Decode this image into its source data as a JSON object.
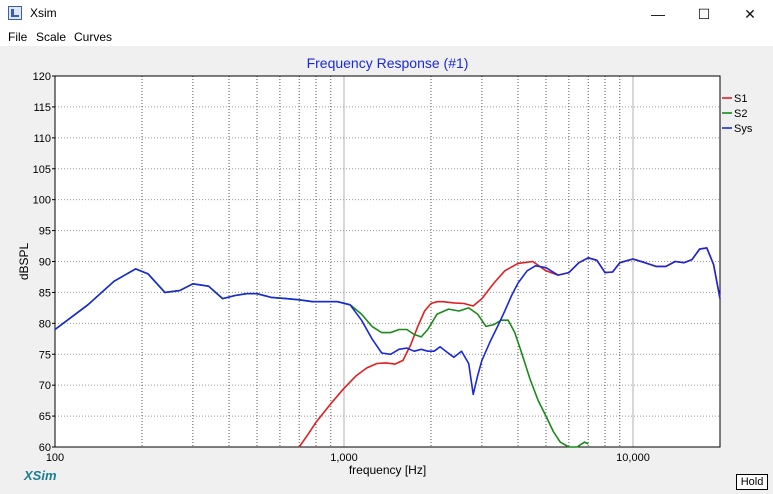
{
  "window": {
    "title": "Xsim",
    "controls": [
      "—",
      "☐",
      "✕"
    ]
  },
  "menu": {
    "items": [
      "File",
      "Scale",
      "Curves"
    ]
  },
  "brand": "XSim",
  "hold_label": "Hold",
  "chart_data": {
    "type": "line",
    "title": "Frequency Response (#1)",
    "xlabel": "frequency [Hz]",
    "ylabel": "dBSPL",
    "x_scale": "log",
    "xlim": [
      100,
      20000
    ],
    "ylim": [
      60,
      120
    ],
    "x_tick_labels": [
      {
        "value": 100,
        "label": "100"
      },
      {
        "value": 1000,
        "label": "1,000"
      },
      {
        "value": 10000,
        "label": "10,000"
      }
    ],
    "y_ticks": [
      120,
      115,
      110,
      105,
      100,
      95,
      90,
      85,
      80,
      75,
      70,
      65,
      60
    ],
    "grid": true,
    "legend_position": "top-right",
    "series": [
      {
        "name": "S1",
        "color": "#e02020",
        "x": [
          700,
          750,
          800,
          900,
          1000,
          1100,
          1200,
          1300,
          1400,
          1500,
          1600,
          1700,
          1800,
          1900,
          2000,
          2100,
          2200,
          2400,
          2600,
          2800,
          3000,
          3300,
          3600,
          4000,
          4500,
          5000,
          5500,
          6000,
          6500,
          7000,
          7500,
          8000,
          8500,
          9000,
          10000,
          11000,
          12000,
          13000,
          14000,
          15000,
          16000,
          17000,
          18000,
          19000,
          20000
        ],
        "y": [
          60,
          62,
          64,
          67,
          69.5,
          71.5,
          72.8,
          73.5,
          73.6,
          73.4,
          74,
          76.5,
          79.5,
          82,
          83.2,
          83.5,
          83.5,
          83.3,
          83.2,
          82.8,
          84,
          86.5,
          88.5,
          89.7,
          90,
          88.5,
          87.8,
          88.2,
          89.8,
          90.6,
          90.2,
          88.2,
          88.3,
          89.8,
          90.4,
          89.8,
          89.2,
          89.2,
          90,
          89.8,
          90.3,
          92,
          92.2,
          89.5,
          84
        ]
      },
      {
        "name": "S2",
        "color": "#1a8a1a",
        "x": [
          100,
          130,
          160,
          190,
          210,
          240,
          270,
          300,
          340,
          380,
          420,
          460,
          500,
          560,
          630,
          700,
          780,
          860,
          950,
          1050,
          1150,
          1250,
          1350,
          1450,
          1550,
          1650,
          1750,
          1850,
          1950,
          2100,
          2300,
          2500,
          2700,
          2900,
          3100,
          3300,
          3500,
          3700,
          3900,
          4100,
          4400,
          4700,
          5000,
          5300,
          5600,
          6000,
          6400,
          6800,
          7000
        ],
        "y": [
          79,
          83,
          86.8,
          88.8,
          88,
          85,
          85.3,
          86.4,
          86,
          84,
          84.5,
          84.8,
          84.8,
          84.2,
          84,
          83.8,
          83.5,
          83.5,
          83.5,
          83,
          81.5,
          79.5,
          78.5,
          78.5,
          79,
          79,
          78.2,
          77.8,
          79,
          81.5,
          82.3,
          82,
          82.5,
          81.5,
          79.5,
          79.8,
          80.5,
          80.5,
          78.5,
          75.5,
          71,
          67.5,
          65,
          62.5,
          60.8,
          60,
          60,
          60.8,
          60.5
        ]
      },
      {
        "name": "Sys",
        "color": "#1a2ad8",
        "x": [
          100,
          130,
          160,
          190,
          210,
          240,
          270,
          300,
          340,
          380,
          420,
          460,
          500,
          560,
          630,
          700,
          780,
          860,
          950,
          1050,
          1150,
          1250,
          1350,
          1450,
          1550,
          1650,
          1750,
          1850,
          1950,
          2050,
          2150,
          2250,
          2400,
          2550,
          2700,
          2800,
          2900,
          3000,
          3200,
          3400,
          3600,
          3800,
          4000,
          4300,
          4600,
          5000,
          5500,
          6000,
          6500,
          7000,
          7500,
          8000,
          8500,
          9000,
          10000,
          11000,
          12000,
          13000,
          14000,
          15000,
          16000,
          17000,
          18000,
          19000,
          20000
        ],
        "y": [
          79,
          83,
          86.8,
          88.8,
          88,
          85,
          85.3,
          86.4,
          86,
          84,
          84.5,
          84.8,
          84.8,
          84.2,
          84,
          83.8,
          83.5,
          83.5,
          83.5,
          83,
          80.5,
          77.5,
          75.2,
          75,
          75.8,
          76,
          75.5,
          75.8,
          75.5,
          75.5,
          76.2,
          75.5,
          74.5,
          75.5,
          73.5,
          68.5,
          71.5,
          74,
          77,
          79.5,
          82,
          84.5,
          86.5,
          88.5,
          89.3,
          89,
          87.8,
          88.2,
          89.8,
          90.6,
          90.2,
          88.2,
          88.3,
          89.8,
          90.4,
          89.8,
          89.2,
          89.2,
          90,
          89.8,
          90.3,
          92,
          92.2,
          89.5,
          84
        ]
      }
    ]
  }
}
